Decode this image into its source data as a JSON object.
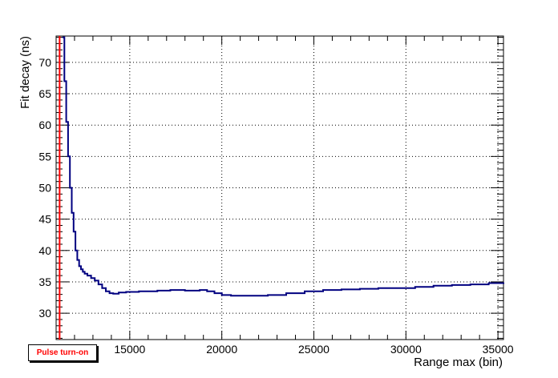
{
  "chart_data": {
    "type": "line",
    "title": "",
    "xlabel": "Range max (bin)",
    "ylabel": "Fit decay (ns)",
    "xlim": [
      11000,
      35300
    ],
    "ylim": [
      25.8,
      74.2
    ],
    "grid": true,
    "x_ticks": [
      15000,
      20000,
      25000,
      30000,
      35000
    ],
    "x_tick_labels": [
      "15000",
      "20000",
      "25000",
      "30000",
      "35000"
    ],
    "y_ticks": [
      30,
      35,
      40,
      45,
      50,
      55,
      60,
      65,
      70
    ],
    "y_tick_labels": [
      "30",
      "35",
      "40",
      "45",
      "50",
      "55",
      "60",
      "65",
      "70"
    ],
    "series": [
      {
        "color": "#000080",
        "style": "step",
        "x": [
          11350,
          11450,
          11550,
          11650,
          11750,
          11850,
          11950,
          12050,
          12150,
          12250,
          12350,
          12450,
          12550,
          12700,
          12900,
          13100,
          13300,
          13500,
          13700,
          13900,
          14100,
          14400,
          14800,
          15500,
          16500,
          17200,
          18000,
          18800,
          19200,
          19600,
          20000,
          20500,
          21500,
          22500,
          23500,
          24500,
          25500,
          26500,
          27500,
          28500,
          29500,
          30500,
          31500,
          32500,
          33500,
          34500,
          35300
        ],
        "values": [
          74,
          67,
          60.5,
          55,
          50,
          46,
          43,
          40,
          38.5,
          37.5,
          37,
          36.6,
          36.3,
          36,
          35.6,
          35.2,
          34.6,
          34,
          33.5,
          33.2,
          33.1,
          33.3,
          33.4,
          33.5,
          33.6,
          33.7,
          33.6,
          33.7,
          33.5,
          33.2,
          32.9,
          32.8,
          32.8,
          32.9,
          33.2,
          33.5,
          33.7,
          33.8,
          33.9,
          34.0,
          34.0,
          34.2,
          34.4,
          34.5,
          34.6,
          34.8,
          34.9
        ]
      }
    ],
    "vertical_lines": [
      {
        "x": 11190,
        "color": "#ff0000"
      }
    ]
  },
  "legend": {
    "label": "Pulse turn-on",
    "color": "#ff0000"
  }
}
